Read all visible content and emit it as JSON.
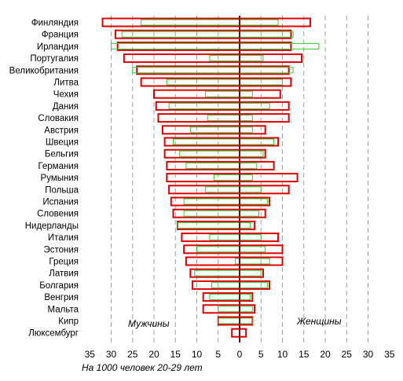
{
  "chart_data": {
    "type": "bar",
    "orientation": "horizontal-butterfly",
    "categories": [
      "Финляндия",
      "Франция",
      "Ирландия",
      "Португалия",
      "Великобритания",
      "Литва",
      "Чехия",
      "Дания",
      "Словакия",
      "Австрия",
      "Швеция",
      "Бельгия",
      "Германия",
      "Румыния",
      "Польша",
      "Испания",
      "Словения",
      "Нидерланды",
      "Италия",
      "Эстония",
      "Греция",
      "Латвия",
      "Болгария",
      "Венгрия",
      "Мальта",
      "Кипр",
      "Люксембург"
    ],
    "series": [
      {
        "side": "left",
        "outline": "#dd0000",
        "values": [
          32,
          29,
          28.5,
          27,
          24,
          23,
          20,
          19.5,
          19,
          18,
          17.5,
          17.5,
          17,
          17,
          16.5,
          16,
          15.5,
          14.5,
          13.5,
          13,
          12.5,
          11.5,
          11,
          8.5,
          8.5,
          5,
          1.8
        ]
      },
      {
        "side": "left",
        "outline": "#33cc33",
        "values": [
          23,
          27.5,
          30,
          7,
          25,
          17,
          8,
          16.5,
          7.5,
          11.5,
          15.5,
          14,
          12.5,
          6,
          8,
          13,
          13,
          14.5,
          7,
          10,
          1,
          10.5,
          6.5,
          7,
          5,
          5,
          0
        ]
      },
      {
        "side": "right",
        "outline": "#dd0000",
        "values": [
          16.5,
          12,
          12,
          14.5,
          11.5,
          12,
          9.5,
          11.5,
          11.5,
          6,
          9,
          6,
          8,
          13.5,
          11.5,
          7,
          6,
          3.5,
          9,
          10,
          10,
          5.5,
          7,
          3,
          3.5,
          3,
          1.5
        ]
      },
      {
        "side": "right",
        "outline": "#33cc33",
        "values": [
          9,
          12.5,
          18.5,
          5.5,
          12.5,
          10,
          3,
          7,
          3,
          3,
          8,
          5.5,
          4,
          3,
          5,
          6.5,
          4.5,
          2.5,
          5,
          6,
          7,
          5,
          6.5,
          2.5,
          3,
          3,
          0
        ]
      }
    ],
    "xlim": [
      -35,
      35
    ],
    "xticks": [
      "35",
      "30",
      "25",
      "20",
      "15",
      "10",
      "5",
      "0",
      "5",
      "10",
      "15",
      "20",
      "25",
      "30",
      "35"
    ],
    "xlabel": "На 1000 человек 20-29 лет",
    "annotations": {
      "left": "Мужчины",
      "right": "Женщины"
    },
    "grid": "vertical dashed"
  }
}
